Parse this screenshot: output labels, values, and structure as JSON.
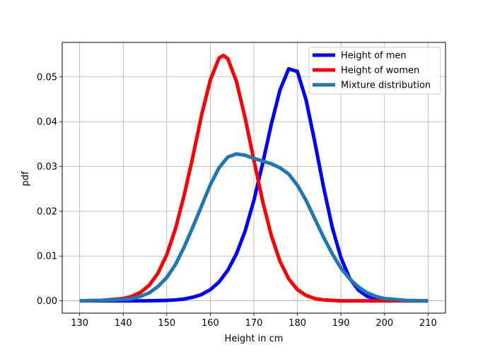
{
  "chart_data": {
    "type": "line",
    "title": "",
    "xlabel": "Height in cm",
    "ylabel": "pdf",
    "xlim": [
      126,
      214
    ],
    "ylim": [
      -0.00275,
      0.0577
    ],
    "xticks": [
      130,
      140,
      150,
      160,
      170,
      180,
      190,
      200,
      210
    ],
    "yticks": [
      0.0,
      0.01,
      0.02,
      0.03,
      0.04,
      0.05
    ],
    "ytick_labels": [
      "0.00",
      "0.01",
      "0.02",
      "0.03",
      "0.04",
      "0.05"
    ],
    "grid": true,
    "legend": "top-right",
    "series": [
      {
        "name": "Height of men",
        "color": "#0000ff",
        "x": [
          130,
          135,
          140,
          145,
          150,
          152,
          154,
          156,
          158,
          160,
          162,
          164,
          166,
          168,
          170,
          172,
          174,
          176,
          178,
          180,
          182,
          184,
          186,
          188,
          190,
          192,
          194,
          196,
          198,
          200,
          205,
          210
        ],
        "y": [
          0.0,
          0.0,
          0.0,
          0.0,
          0.0001,
          0.0002,
          0.0004,
          0.0008,
          0.0014,
          0.0025,
          0.0042,
          0.0068,
          0.0105,
          0.0156,
          0.0224,
          0.0306,
          0.0394,
          0.0471,
          0.0518,
          0.0512,
          0.0448,
          0.0354,
          0.0254,
          0.0164,
          0.0096,
          0.005,
          0.0024,
          0.001,
          0.0004,
          0.0001,
          0.0,
          0.0
        ]
      },
      {
        "name": "Height of women",
        "color": "#ff0000",
        "x": [
          130,
          135,
          140,
          142,
          144,
          146,
          148,
          150,
          152,
          154,
          156,
          158,
          160,
          162,
          163,
          164,
          166,
          168,
          170,
          172,
          174,
          176,
          178,
          180,
          182,
          184,
          186,
          190,
          195,
          200,
          205,
          210
        ],
        "y": [
          0.0,
          0.0001,
          0.0005,
          0.001,
          0.0019,
          0.0035,
          0.0062,
          0.0103,
          0.0161,
          0.0236,
          0.0322,
          0.0415,
          0.0493,
          0.0542,
          0.0548,
          0.0541,
          0.049,
          0.0408,
          0.0314,
          0.0223,
          0.0146,
          0.0088,
          0.0049,
          0.0025,
          0.0012,
          0.0005,
          0.0002,
          0.0,
          0.0,
          0.0,
          0.0,
          0.0
        ]
      },
      {
        "name": "Mixture distribution",
        "color": "#1f77b4",
        "x": [
          130,
          135,
          140,
          142,
          144,
          146,
          148,
          150,
          152,
          154,
          156,
          158,
          160,
          162,
          164,
          166,
          168,
          170,
          172,
          174,
          176,
          178,
          180,
          182,
          184,
          186,
          188,
          190,
          192,
          194,
          196,
          198,
          200,
          205,
          210
        ],
        "y": [
          0.0,
          0.0001,
          0.0003,
          0.0005,
          0.001,
          0.0018,
          0.0032,
          0.0052,
          0.0081,
          0.012,
          0.0165,
          0.0212,
          0.0259,
          0.0297,
          0.0321,
          0.0328,
          0.0325,
          0.0318,
          0.0312,
          0.0306,
          0.0297,
          0.0283,
          0.0258,
          0.0224,
          0.0183,
          0.0142,
          0.0105,
          0.0073,
          0.0049,
          0.0031,
          0.0018,
          0.001,
          0.0005,
          0.0001,
          0.0
        ]
      }
    ]
  }
}
